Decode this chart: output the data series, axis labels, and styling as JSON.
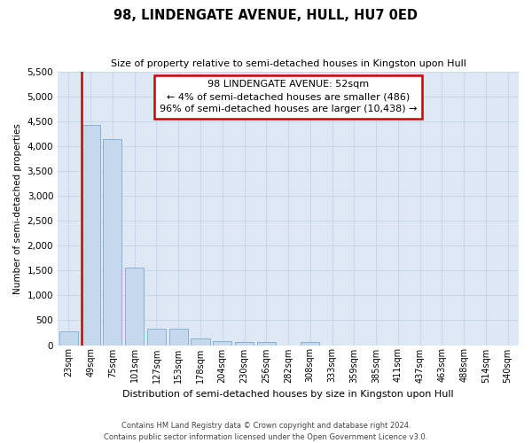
{
  "title": "98, LINDENGATE AVENUE, HULL, HU7 0ED",
  "subtitle": "Size of property relative to semi-detached houses in Kingston upon Hull",
  "xlabel": "Distribution of semi-detached houses by size in Kingston upon Hull",
  "ylabel": "Number of semi-detached properties",
  "footer_line1": "Contains HM Land Registry data © Crown copyright and database right 2024.",
  "footer_line2": "Contains public sector information licensed under the Open Government Licence v3.0.",
  "annotation_line1": "98 LINDENGATE AVENUE: 52sqm",
  "annotation_line2": "← 4% of semi-detached houses are smaller (486)",
  "annotation_line3": "96% of semi-detached houses are larger (10,438) →",
  "categories": [
    "23sqm",
    "49sqm",
    "75sqm",
    "101sqm",
    "127sqm",
    "153sqm",
    "178sqm",
    "204sqm",
    "230sqm",
    "256sqm",
    "282sqm",
    "308sqm",
    "333sqm",
    "359sqm",
    "385sqm",
    "411sqm",
    "437sqm",
    "463sqm",
    "488sqm",
    "514sqm",
    "540sqm"
  ],
  "values": [
    285,
    4430,
    4150,
    1560,
    330,
    330,
    130,
    80,
    65,
    55,
    0,
    58,
    0,
    0,
    0,
    0,
    0,
    0,
    0,
    0,
    0
  ],
  "bar_color": "#c5d8ed",
  "bar_edge_color": "#7aabcf",
  "highlight_line_color": "#cc0000",
  "annotation_box_edge_color": "#cc0000",
  "grid_color": "#c8d8ea",
  "background_color": "#dde8f4",
  "ylim_max": 5500,
  "yticks": [
    0,
    500,
    1000,
    1500,
    2000,
    2500,
    3000,
    3500,
    4000,
    4500,
    5000,
    5500
  ],
  "property_bin_index": 1,
  "bar_width": 0.85
}
